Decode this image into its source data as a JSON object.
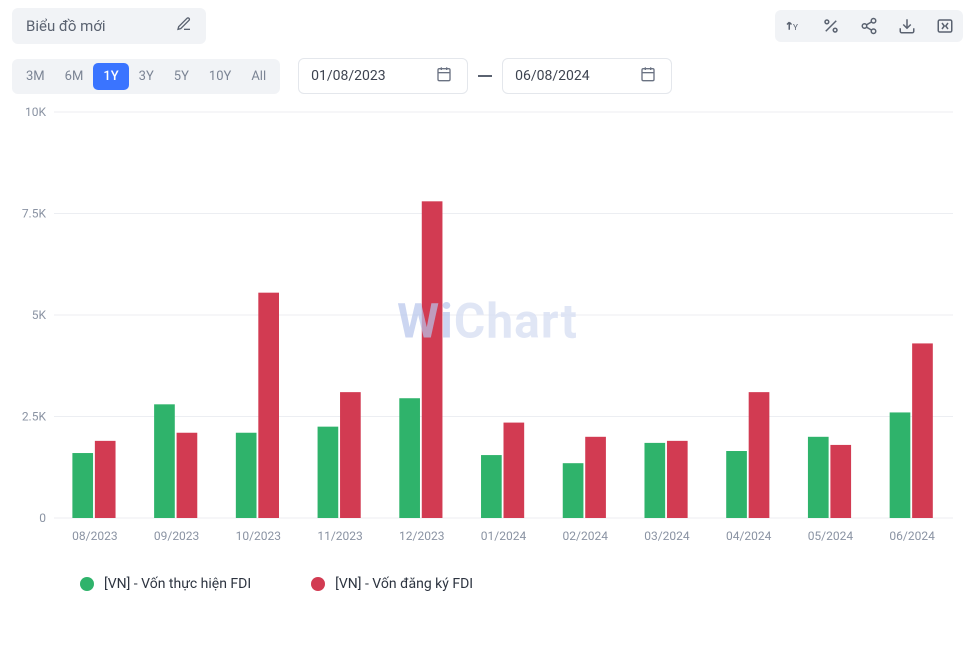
{
  "header": {
    "title": "Biểu đồ mới"
  },
  "toolbar": {
    "icons": [
      "y-axis-toggle",
      "percent",
      "share",
      "download",
      "export-spreadsheet"
    ]
  },
  "ranges": {
    "options": [
      "3M",
      "6M",
      "1Y",
      "3Y",
      "5Y",
      "10Y",
      "All"
    ],
    "active": "1Y"
  },
  "dates": {
    "from": "01/08/2023",
    "to": "06/08/2024"
  },
  "watermark": "WiChart",
  "chart": {
    "type": "bar-grouped",
    "background_color": "#ffffff",
    "grid_color": "#eceef2",
    "axis_color": "#d7dbe2",
    "tick_label_color": "#8a93a3",
    "tick_fontsize": 12,
    "xtick_fontsize": 12,
    "ylim": [
      0,
      10000
    ],
    "yticks": [
      0,
      2500,
      5000,
      7500,
      10000
    ],
    "ytick_labels": [
      "0",
      "2.5K",
      "5K",
      "7.5K",
      "10K"
    ],
    "bar_group_gap": 0.45,
    "bar_width": 0.28,
    "categories": [
      "08/2023",
      "09/2023",
      "10/2023",
      "11/2023",
      "12/2023",
      "01/2024",
      "02/2024",
      "03/2024",
      "04/2024",
      "05/2024",
      "06/2024"
    ],
    "series": [
      {
        "name": "[VN] - Vốn thực hiện FDI",
        "color": "#2fb36b",
        "values": [
          1600,
          2800,
          2100,
          2250,
          2950,
          1550,
          1350,
          1850,
          1650,
          2000,
          2600
        ]
      },
      {
        "name": "[VN] - Vốn đăng ký FDI",
        "color": "#d23b52",
        "values": [
          1900,
          2100,
          5550,
          3100,
          7800,
          2350,
          2000,
          1900,
          3100,
          1800,
          4300
        ]
      }
    ]
  }
}
